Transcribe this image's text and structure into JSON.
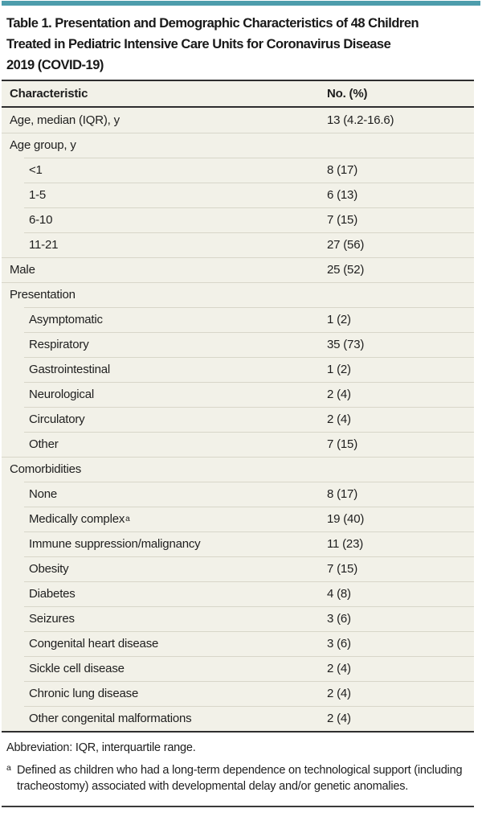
{
  "colors": {
    "accent_teal": "#4D9DAC",
    "table_background": "#F2F1E8",
    "dark_rule": "#2E2E2E",
    "light_separator": "#D8D6C9"
  },
  "title": {
    "lines": [
      "Table 1. Presentation and Demographic Characteristics of 48 Children",
      "Treated in Pediatric Intensive Care Units for Coronavirus Disease",
      "2019 (COVID-19)"
    ]
  },
  "table": {
    "header": {
      "characteristic": "Characteristic",
      "value": "No. (%)"
    },
    "rows": [
      {
        "label": "Age, median (IQR), y",
        "value": "13 (4.2-16.6)",
        "indent": false
      },
      {
        "label": "Age group, y",
        "value": "",
        "indent": false
      },
      {
        "label": "<1",
        "value": "8 (17)",
        "indent": true
      },
      {
        "label": "1-5",
        "value": "6 (13)",
        "indent": true
      },
      {
        "label": "6-10",
        "value": "7 (15)",
        "indent": true
      },
      {
        "label": "11-21",
        "value": "27 (56)",
        "indent": true
      },
      {
        "label": "Male",
        "value": "25 (52)",
        "indent": false
      },
      {
        "label": "Presentation",
        "value": "",
        "indent": false
      },
      {
        "label": "Asymptomatic",
        "value": "1 (2)",
        "indent": true
      },
      {
        "label": "Respiratory",
        "value": "35 (73)",
        "indent": true
      },
      {
        "label": "Gastrointestinal",
        "value": "1 (2)",
        "indent": true
      },
      {
        "label": "Neurological",
        "value": "2 (4)",
        "indent": true
      },
      {
        "label": "Circulatory",
        "value": "2 (4)",
        "indent": true
      },
      {
        "label": "Other",
        "value": "7 (15)",
        "indent": true
      },
      {
        "label": "Comorbidities",
        "value": "",
        "indent": false
      },
      {
        "label": "None",
        "value": "8 (17)",
        "indent": true
      },
      {
        "label": "Medically complex",
        "sup": "a",
        "value": "19 (40)",
        "indent": true
      },
      {
        "label": "Immune suppression/malignancy",
        "value": "11 (23)",
        "indent": true
      },
      {
        "label": "Obesity",
        "value": "7 (15)",
        "indent": true
      },
      {
        "label": "Diabetes",
        "value": "4 (8)",
        "indent": true
      },
      {
        "label": "Seizures",
        "value": "3 (6)",
        "indent": true
      },
      {
        "label": "Congenital heart disease",
        "value": "3 (6)",
        "indent": true
      },
      {
        "label": "Sickle cell disease",
        "value": "2 (4)",
        "indent": true
      },
      {
        "label": "Chronic lung disease",
        "value": "2 (4)",
        "indent": true
      },
      {
        "label": "Other congenital malformations",
        "value": "2 (4)",
        "indent": true
      }
    ]
  },
  "footnotes": {
    "abbreviation": "Abbreviation: IQR, interquartile range.",
    "note_a": {
      "marker": "a",
      "text": "Defined as children who had a long-term dependence on technological support (including tracheostomy) associated with developmental delay and/or genetic anomalies."
    }
  }
}
